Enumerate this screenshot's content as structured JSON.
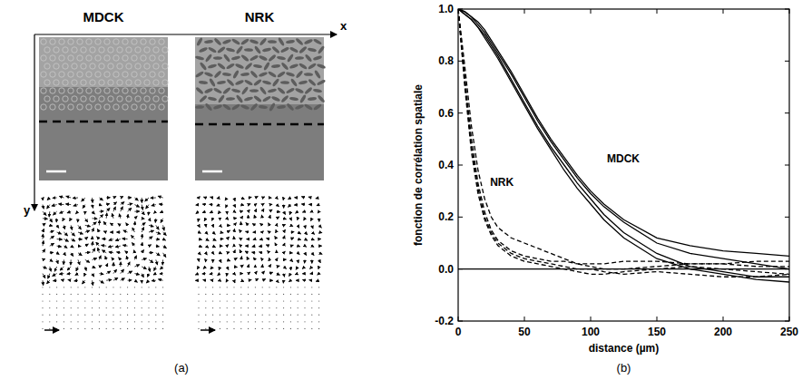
{
  "panel_a": {
    "label": "(a)",
    "titles": [
      "MDCK",
      "NRK"
    ],
    "axes": {
      "x": "x",
      "y": "y"
    }
  },
  "panel_b": {
    "label": "(b)"
  },
  "chart_data": {
    "type": "line",
    "x_label": "distance (µm)",
    "y_label": "fonction de corrélation spatiale",
    "annotations": [
      "MDCK",
      "NRK"
    ],
    "x": [
      0,
      5,
      10,
      15,
      20,
      25,
      30,
      40,
      50,
      60,
      70,
      80,
      90,
      100,
      110,
      125,
      150,
      175,
      200,
      225,
      250
    ],
    "series": [
      {
        "color": "#000000",
        "line_style": "solid",
        "values": [
          1.0,
          0.99,
          0.97,
          0.95,
          0.92,
          0.88,
          0.84,
          0.76,
          0.67,
          0.58,
          0.5,
          0.43,
          0.36,
          0.3,
          0.25,
          0.19,
          0.12,
          0.09,
          0.07,
          0.06,
          0.05
        ]
      },
      {
        "color": "#000000",
        "line_style": "solid",
        "values": [
          1.0,
          0.99,
          0.97,
          0.94,
          0.91,
          0.87,
          0.83,
          0.75,
          0.66,
          0.57,
          0.49,
          0.42,
          0.35,
          0.29,
          0.24,
          0.18,
          0.1,
          0.06,
          0.04,
          0.02,
          0.0
        ]
      },
      {
        "color": "#000000",
        "line_style": "solid",
        "values": [
          1.0,
          0.98,
          0.96,
          0.93,
          0.9,
          0.86,
          0.82,
          0.73,
          0.64,
          0.55,
          0.47,
          0.4,
          0.33,
          0.27,
          0.21,
          0.14,
          0.06,
          0.01,
          -0.01,
          -0.03,
          -0.03
        ]
      },
      {
        "color": "#000000",
        "line_style": "solid",
        "values": [
          1.0,
          0.98,
          0.96,
          0.93,
          0.89,
          0.85,
          0.81,
          0.72,
          0.63,
          0.54,
          0.46,
          0.38,
          0.31,
          0.25,
          0.19,
          0.12,
          0.04,
          0.0,
          -0.02,
          -0.04,
          -0.05
        ]
      },
      {
        "color": "#000000",
        "line_style": "dashed",
        "values": [
          1.0,
          0.78,
          0.55,
          0.38,
          0.27,
          0.2,
          0.16,
          0.12,
          0.1,
          0.08,
          0.06,
          0.04,
          0.02,
          0.01,
          0.0,
          0.0,
          0.01,
          0.02,
          0.02,
          0.01,
          0.01
        ]
      },
      {
        "color": "#000000",
        "line_style": "dashed",
        "values": [
          1.0,
          0.74,
          0.5,
          0.33,
          0.22,
          0.15,
          0.11,
          0.07,
          0.05,
          0.04,
          0.03,
          0.03,
          0.02,
          0.02,
          0.02,
          0.03,
          0.03,
          0.02,
          0.02,
          0.03,
          0.03
        ]
      },
      {
        "color": "#000000",
        "line_style": "dashed",
        "values": [
          1.0,
          0.7,
          0.45,
          0.29,
          0.19,
          0.13,
          0.09,
          0.05,
          0.03,
          0.02,
          0.01,
          0.0,
          -0.01,
          -0.02,
          -0.02,
          -0.01,
          0.0,
          0.01,
          0.0,
          -0.01,
          -0.02
        ]
      },
      {
        "color": "#000000",
        "line_style": "dashed",
        "values": [
          1.0,
          0.72,
          0.47,
          0.31,
          0.2,
          0.14,
          0.1,
          0.06,
          0.04,
          0.03,
          0.02,
          0.01,
          0.0,
          0.0,
          -0.01,
          -0.02,
          -0.01,
          -0.02,
          -0.03,
          -0.03,
          -0.02
        ]
      }
    ],
    "xlim": [
      0,
      250
    ],
    "xticks": [
      0,
      50,
      100,
      150,
      200,
      250
    ],
    "ylim": [
      -0.2,
      1.0
    ],
    "yticks": [
      -0.2,
      {
        "value": 0,
        "label": "0.0"
      },
      0.2,
      0.4,
      0.6,
      0.8,
      {
        "value": 1,
        "label": "1.0"
      }
    ],
    "grid": false
  }
}
